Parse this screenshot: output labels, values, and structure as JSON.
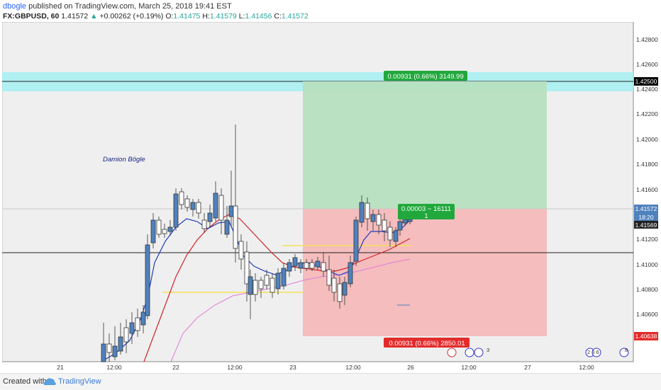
{
  "header": {
    "author": "dbogle",
    "published_text": "published on TradingView.com, March 25, 2018 19:41 EST",
    "symbol": "FX:GBPUSD, 60",
    "last": "1.41572",
    "change": "+0.00262 (+0.19%)",
    "open_label": "O:",
    "open": "1.41475",
    "high_label": "H:",
    "high": "1.41579",
    "low_label": "L:",
    "low": "1.41456",
    "close_label": "C:",
    "close": "1.41572"
  },
  "chart": {
    "watermark": "Damion Bögle",
    "price_ticks": [
      "1.42800",
      "1.42600",
      "1.42400",
      "1.42200",
      "1.42000",
      "1.41800",
      "1.41600",
      "1.41400",
      "1.41200",
      "1.41000",
      "1.40800",
      "1.40600"
    ],
    "time_labels": [
      "21",
      "12:00",
      "22",
      "12:00",
      "23",
      "12:00",
      "26",
      "12:00",
      "27",
      "12:00"
    ],
    "target_label": "0.00931 (0.66%) 3149.99",
    "stop_label": "0.00931 (0.66%) 2850.01",
    "entry_label_1": "0.00003 ~ 16111",
    "entry_label_2": "1",
    "axis_badges": {
      "target": "1.42500",
      "last": "1.41572",
      "countdown": "18:20",
      "ema": "1.41569",
      "stop": "1.40638"
    },
    "event_icons": [
      {
        "count": "3"
      },
      {
        "count": "2 3 6"
      },
      {
        "count": "8"
      }
    ],
    "colors": {
      "up": "#4f81bd",
      "down": "#ffffff",
      "target_zone": "#b7dfc0",
      "stop_zone": "#f4b9b9",
      "resistance": "#a5eef2",
      "ema_fast": "#1f3fbf",
      "ema_mid": "#d0222a",
      "ema_slow": "#e07ad8"
    }
  },
  "footer": {
    "created_with": "Created with",
    "brand": "TradingView"
  }
}
